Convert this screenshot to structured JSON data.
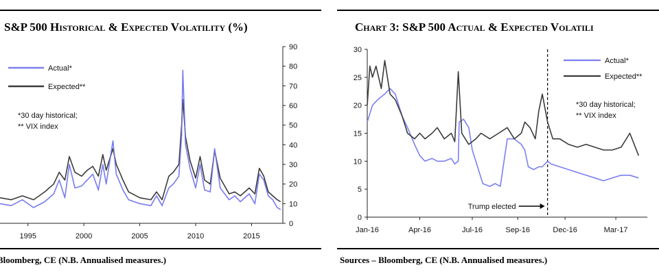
{
  "colors": {
    "actual": "#7b7ff0",
    "expected": "#3a3a3a",
    "axis": "#222222"
  },
  "charts": [
    {
      "title": "S&P 500 Historical & Expected Volatility (%)",
      "source": "Bloomberg, CE (N.B. Annualised measures.)"
    },
    {
      "title": "Chart 3: S&P 500 Actual & Expected Volatili",
      "source": "Sources – Bloomberg, CE (N.B. Annualised measures.)"
    }
  ],
  "chart_data": [
    {
      "type": "line",
      "title": "S&P 500 Historical & Expected Volatility (%)",
      "xlabel": "",
      "ylabel": "",
      "x_ticks": [
        "1995",
        "2000",
        "2005",
        "2010",
        "2015"
      ],
      "xlim": [
        1992.5,
        2017.8
      ],
      "ylim": [
        0,
        90
      ],
      "y_ticks": [
        "0",
        "10",
        "20",
        "30",
        "40",
        "50",
        "60",
        "70",
        "80",
        "90"
      ],
      "y_axis_side": "right",
      "legend": [
        "Actual*",
        "Expected**"
      ],
      "legend_placement": "top-left",
      "annotation": [
        "*30 day historical;",
        "** VIX index"
      ],
      "series": [
        {
          "name": "Actual*",
          "x": [
            1992.5,
            1993.5,
            1994.5,
            1995.5,
            1996.5,
            1997.3,
            1997.8,
            1998.3,
            1998.7,
            1999.2,
            1999.8,
            2000.3,
            2000.8,
            2001.3,
            2001.7,
            2002.0,
            2002.6,
            2002.9,
            2003.5,
            2004.0,
            2005.0,
            2006.0,
            2006.5,
            2007.0,
            2007.6,
            2008.0,
            2008.5,
            2008.75,
            2008.85,
            2009.1,
            2009.5,
            2010.0,
            2010.4,
            2010.8,
            2011.3,
            2011.7,
            2012.2,
            2013.0,
            2013.5,
            2014.0,
            2014.8,
            2015.3,
            2015.7,
            2016.1,
            2016.5,
            2016.9,
            2017.3,
            2017.6
          ],
          "values": [
            10,
            9,
            12,
            8,
            11,
            15,
            22,
            13,
            30,
            18,
            19,
            22,
            25,
            17,
            30,
            20,
            42,
            25,
            17,
            12,
            10,
            9,
            14,
            9,
            18,
            20,
            24,
            45,
            78,
            40,
            28,
            18,
            30,
            17,
            16,
            38,
            18,
            12,
            14,
            11,
            15,
            10,
            25,
            22,
            14,
            12,
            8,
            7
          ]
        },
        {
          "name": "Expected**",
          "x": [
            1992.5,
            1993.5,
            1994.5,
            1995.5,
            1996.5,
            1997.3,
            1997.8,
            1998.3,
            1998.7,
            1999.2,
            1999.8,
            2000.3,
            2000.8,
            2001.3,
            2001.7,
            2002.0,
            2002.6,
            2002.9,
            2003.5,
            2004.0,
            2005.0,
            2006.0,
            2006.5,
            2007.0,
            2007.6,
            2008.0,
            2008.5,
            2008.75,
            2008.85,
            2009.1,
            2009.5,
            2010.0,
            2010.4,
            2010.8,
            2011.3,
            2011.7,
            2012.2,
            2013.0,
            2013.5,
            2014.0,
            2014.8,
            2015.3,
            2015.7,
            2016.1,
            2016.5,
            2016.9,
            2017.3,
            2017.6
          ],
          "values": [
            13,
            12,
            14,
            12,
            16,
            20,
            26,
            22,
            34,
            26,
            24,
            27,
            29,
            24,
            35,
            27,
            38,
            30,
            22,
            16,
            13,
            12,
            16,
            12,
            24,
            26,
            30,
            50,
            63,
            44,
            32,
            23,
            34,
            22,
            20,
            37,
            23,
            15,
            16,
            14,
            18,
            15,
            28,
            24,
            16,
            14,
            12,
            11
          ]
        }
      ]
    },
    {
      "type": "line",
      "title": "Chart 3: S&P 500 Actual & Expected Volatili",
      "xlabel": "",
      "ylabel": "",
      "x_ticks": [
        "Jan-16",
        "Apr-16",
        "Jul-16",
        "Sep-16",
        "Dec-16",
        "Mar-17"
      ],
      "ylim": [
        0,
        30
      ],
      "y_ticks": [
        "0",
        "5",
        "10",
        "15",
        "20",
        "25",
        "30"
      ],
      "y_axis_side": "left",
      "legend": [
        "Actual*",
        "Expected**"
      ],
      "legend_placement": "top-right",
      "annotation": [
        "*30 day historical;",
        "** VIX index"
      ],
      "event": {
        "label": "Trump elected",
        "x": 10.3
      },
      "series": [
        {
          "name": "Actual*",
          "x": [
            0,
            0.3,
            0.6,
            1.0,
            1.3,
            1.6,
            2.0,
            2.3,
            2.7,
            3.0,
            3.3,
            3.7,
            4.0,
            4.4,
            4.8,
            5.0,
            5.2,
            5.25,
            5.5,
            5.8,
            6.0,
            6.3,
            6.6,
            7.0,
            7.3,
            7.6,
            8.0,
            8.4,
            8.8,
            9.0,
            9.2,
            9.5,
            9.8,
            10.0,
            10.3,
            10.5,
            11.0,
            11.5,
            12.0,
            12.5,
            13.0,
            13.5,
            14.0,
            14.5,
            15.0,
            15.5
          ],
          "values": [
            17,
            20,
            21,
            22,
            23,
            22,
            18,
            16,
            13,
            11,
            10,
            10.5,
            10,
            10,
            10.5,
            9.5,
            10,
            17,
            17.5,
            16,
            12,
            9,
            6,
            5.5,
            6,
            5.5,
            14,
            14,
            13,
            12,
            9,
            8.5,
            9,
            9,
            10,
            9.5,
            9,
            8.5,
            8,
            7.5,
            7,
            6.5,
            7,
            7.5,
            7.5,
            7
          ]
        },
        {
          "name": "Expected**",
          "x": [
            0,
            0.15,
            0.3,
            0.5,
            0.8,
            1.0,
            1.3,
            1.6,
            2.0,
            2.3,
            2.7,
            3.0,
            3.3,
            3.7,
            4.0,
            4.4,
            4.8,
            5.0,
            5.2,
            5.4,
            5.6,
            5.8,
            6.2,
            6.5,
            7.0,
            7.5,
            8.0,
            8.4,
            8.8,
            9.0,
            9.3,
            9.6,
            9.8,
            10.0,
            10.3,
            10.6,
            11.0,
            11.5,
            12.0,
            12.5,
            13.0,
            13.5,
            14.0,
            14.5,
            15.0,
            15.5
          ],
          "values": [
            20,
            27,
            25,
            27,
            23,
            28,
            22,
            21,
            18,
            15,
            14,
            15,
            14,
            15,
            16,
            14,
            15,
            13.5,
            26,
            15,
            14,
            13,
            14,
            15,
            14,
            15,
            16,
            14,
            15,
            17,
            16,
            14,
            19,
            22,
            17,
            14,
            14,
            13,
            12.5,
            13,
            12.5,
            12,
            12,
            12.5,
            15,
            11
          ]
        }
      ]
    }
  ]
}
